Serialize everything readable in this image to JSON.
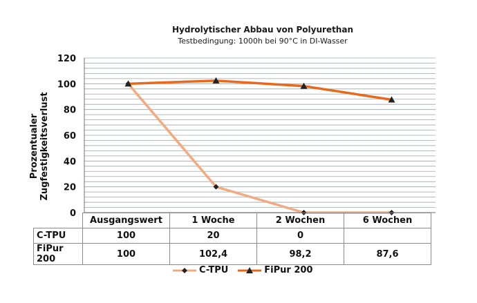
{
  "chart_data": {
    "type": "line",
    "title": "Hydrolytischer Abbau von Polyurethan",
    "subtitle": "Testbedingung: 1000h bei 90°C in DI-Wasser",
    "ylabel": "Prozentualer Zugfestigkeitsverlust",
    "xlabel": "",
    "categories": [
      "Ausgangswert",
      "1 Woche",
      "2 Wochen",
      "6 Wochen"
    ],
    "ylim": [
      0,
      120
    ],
    "yticks": [
      0,
      20,
      40,
      60,
      80,
      100,
      120
    ],
    "grid": true,
    "legend_position": "bottom",
    "series": [
      {
        "name": "C-TPU",
        "values": [
          100,
          20,
          0,
          0
        ],
        "labels": [
          "100",
          "20",
          "0",
          ""
        ],
        "color": "#f2aa80",
        "marker": "diamond"
      },
      {
        "name": "FiPur 200",
        "values": [
          100,
          102.4,
          98.2,
          87.6
        ],
        "labels": [
          "100",
          "102,4",
          "98,2",
          "87,6"
        ],
        "color": "#e8691c",
        "marker": "triangle"
      }
    ]
  }
}
